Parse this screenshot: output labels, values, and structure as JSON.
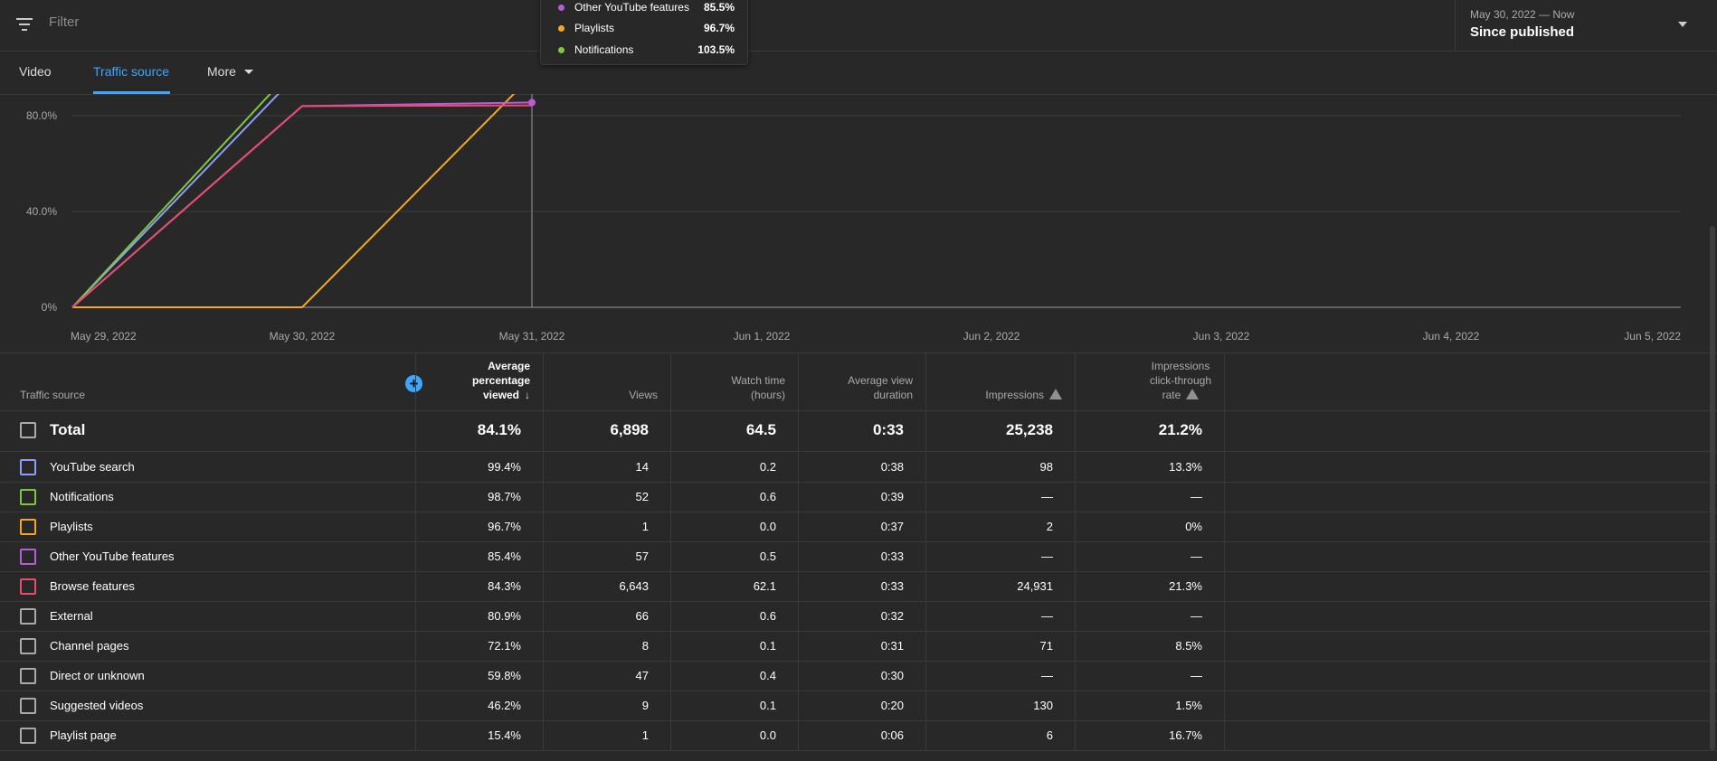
{
  "filter": {
    "placeholder": "Filter",
    "icon": "filter-icon"
  },
  "date_range": {
    "sub": "May 30, 2022 — Now",
    "main": "Since published"
  },
  "tabs": [
    {
      "label": "Video"
    },
    {
      "label": "Traffic source"
    },
    {
      "label": "More"
    }
  ],
  "tooltip": {
    "rows": [
      {
        "label": "Other YouTube features",
        "value": "85.5%",
        "color": "#bb5bd9"
      },
      {
        "label": "Playlists",
        "value": "96.7%",
        "color": "#f5a623"
      },
      {
        "label": "Notifications",
        "value": "103.5%",
        "color": "#7cc843"
      }
    ]
  },
  "chart_data": {
    "type": "line",
    "x_ticks": [
      "May 29, 2022",
      "May 30, 2022",
      "May 31, 2022",
      "Jun 1, 2022",
      "Jun 2, 2022",
      "Jun 3, 2022",
      "Jun 4, 2022",
      "Jun 5, 2022"
    ],
    "y_ticks": [
      "0%",
      "40.0%",
      "80.0%"
    ],
    "ylim": [
      0,
      80
    ],
    "grid": true,
    "x": [
      "May 29, 2022",
      "May 30, 2022",
      "May 31, 2022"
    ],
    "series": [
      {
        "name": "YouTube search",
        "color": "#8e9ef5",
        "values": [
          0,
          99.4,
          null
        ]
      },
      {
        "name": "Notifications",
        "color": "#7cc843",
        "values": [
          0,
          103.5,
          null
        ]
      },
      {
        "name": "Playlists",
        "color": "#f5a623",
        "values": [
          0,
          0,
          96.7
        ]
      },
      {
        "name": "Other YouTube features",
        "color": "#bb5bd9",
        "values": [
          0,
          84.0,
          85.5
        ]
      },
      {
        "name": "Browse features",
        "color": "#e94c6f",
        "values": [
          0,
          84.0,
          84.3
        ]
      }
    ]
  },
  "table": {
    "headers": {
      "source": "Traffic source",
      "avg_pct": [
        "Average",
        "percentage",
        "viewed"
      ],
      "views": "Views",
      "watch": [
        "Watch time",
        "(hours)"
      ],
      "avd": [
        "Average view",
        "duration"
      ],
      "impr": "Impressions",
      "ctr": [
        "Impressions",
        "click-through",
        "rate"
      ]
    },
    "total": {
      "label": "Total",
      "avg_pct": "84.1%",
      "views": "6,898",
      "watch": "64.5",
      "avd": "0:33",
      "impr": "25,238",
      "ctr": "21.2%"
    },
    "rows": [
      {
        "label": "YouTube search",
        "color": "#8e9ef5",
        "avg_pct": "99.4%",
        "views": "14",
        "watch": "0.2",
        "avd": "0:38",
        "impr": "98",
        "ctr": "13.3%"
      },
      {
        "label": "Notifications",
        "color": "#7cc843",
        "avg_pct": "98.7%",
        "views": "52",
        "watch": "0.6",
        "avd": "0:39",
        "impr": "—",
        "ctr": "—"
      },
      {
        "label": "Playlists",
        "color": "#f5a623",
        "avg_pct": "96.7%",
        "views": "1",
        "watch": "0.0",
        "avd": "0:37",
        "impr": "2",
        "ctr": "0%"
      },
      {
        "label": "Other YouTube features",
        "color": "#bb5bd9",
        "avg_pct": "85.4%",
        "views": "57",
        "watch": "0.5",
        "avd": "0:33",
        "impr": "—",
        "ctr": "—"
      },
      {
        "label": "Browse features",
        "color": "#e94c6f",
        "avg_pct": "84.3%",
        "views": "6,643",
        "watch": "62.1",
        "avd": "0:33",
        "impr": "24,931",
        "ctr": "21.3%"
      },
      {
        "label": "External",
        "color": "#aaaaaa",
        "avg_pct": "80.9%",
        "views": "66",
        "watch": "0.6",
        "avd": "0:32",
        "impr": "—",
        "ctr": "—"
      },
      {
        "label": "Channel pages",
        "color": "#aaaaaa",
        "avg_pct": "72.1%",
        "views": "8",
        "watch": "0.1",
        "avd": "0:31",
        "impr": "71",
        "ctr": "8.5%"
      },
      {
        "label": "Direct or unknown",
        "color": "#aaaaaa",
        "avg_pct": "59.8%",
        "views": "47",
        "watch": "0.4",
        "avd": "0:30",
        "impr": "—",
        "ctr": "—"
      },
      {
        "label": "Suggested videos",
        "color": "#aaaaaa",
        "avg_pct": "46.2%",
        "views": "9",
        "watch": "0.1",
        "avd": "0:20",
        "impr": "130",
        "ctr": "1.5%"
      },
      {
        "label": "Playlist page",
        "color": "#aaaaaa",
        "avg_pct": "15.4%",
        "views": "1",
        "watch": "0.0",
        "avd": "0:06",
        "impr": "6",
        "ctr": "16.7%"
      }
    ]
  }
}
